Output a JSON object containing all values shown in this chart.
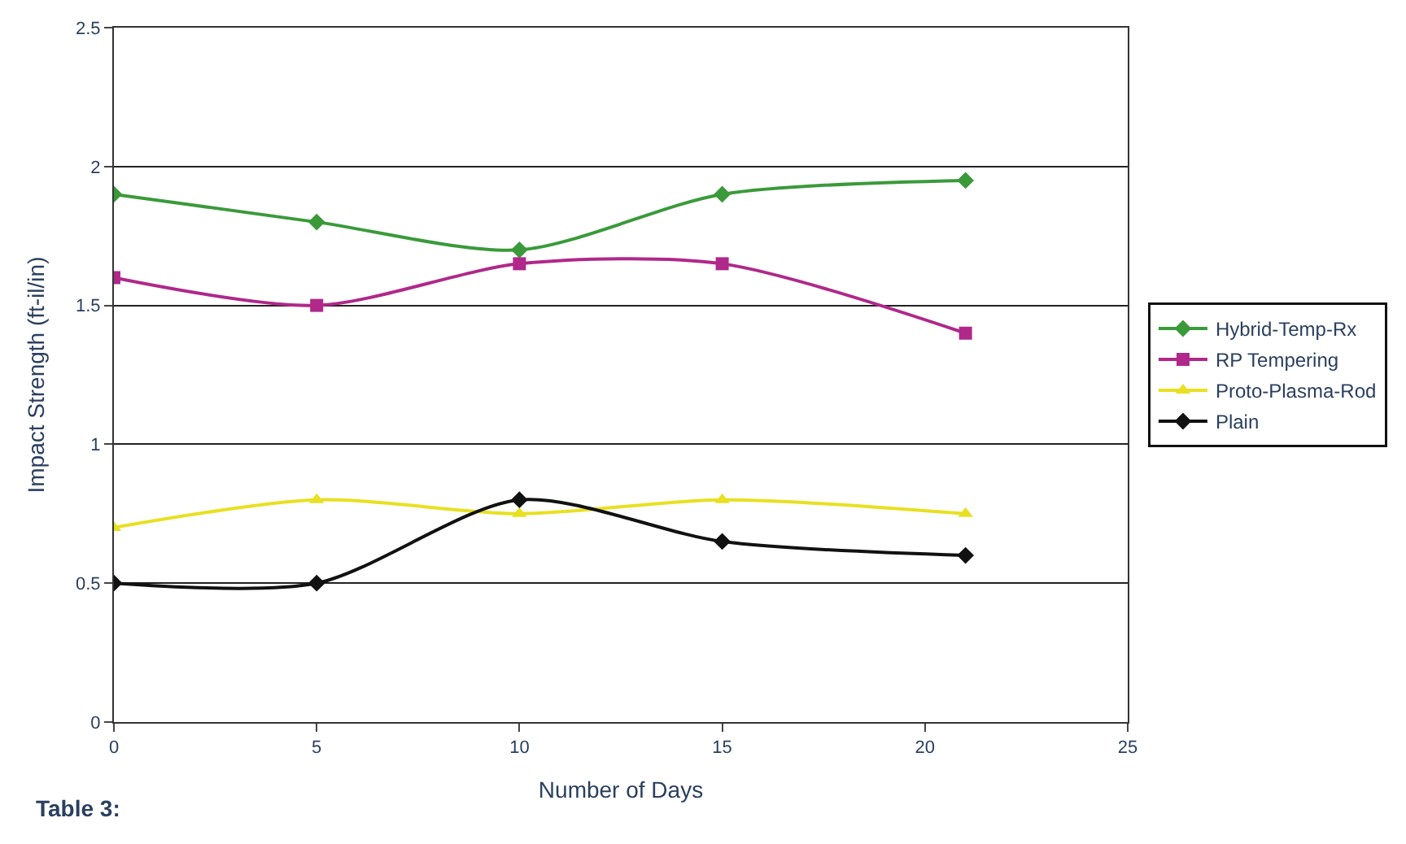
{
  "chart_data": {
    "type": "line",
    "xlabel": "Number of Days",
    "ylabel": "Impact Strength (ft-il/in)",
    "x": [
      0,
      5,
      10,
      15,
      21
    ],
    "series": [
      {
        "name": "Hybrid-Temp-Rx",
        "color": "#3a9a3a",
        "marker": "diamond",
        "values": [
          1.9,
          1.8,
          1.7,
          1.9,
          1.95
        ]
      },
      {
        "name": "RP Tempering",
        "color": "#b0288a",
        "marker": "square",
        "values": [
          1.6,
          1.5,
          1.65,
          1.65,
          1.4
        ]
      },
      {
        "name": "Proto-Plasma-Rod",
        "color": "#e8e020",
        "marker": "triangle",
        "values": [
          0.7,
          0.8,
          0.75,
          0.8,
          0.75
        ]
      },
      {
        "name": "Plain",
        "color": "#111111",
        "marker": "diamond",
        "values": [
          0.5,
          0.5,
          0.8,
          0.65,
          0.6
        ]
      }
    ],
    "xlim": [
      0,
      25
    ],
    "xticks": [
      0,
      5,
      10,
      15,
      20,
      25
    ],
    "ylim": [
      0,
      2.5
    ],
    "yticks": [
      0,
      0.5,
      1,
      1.5,
      2,
      2.5
    ],
    "grid": "y",
    "legend": "right",
    "line_style": "solid",
    "annotations": [
      "Table 3:"
    ]
  }
}
